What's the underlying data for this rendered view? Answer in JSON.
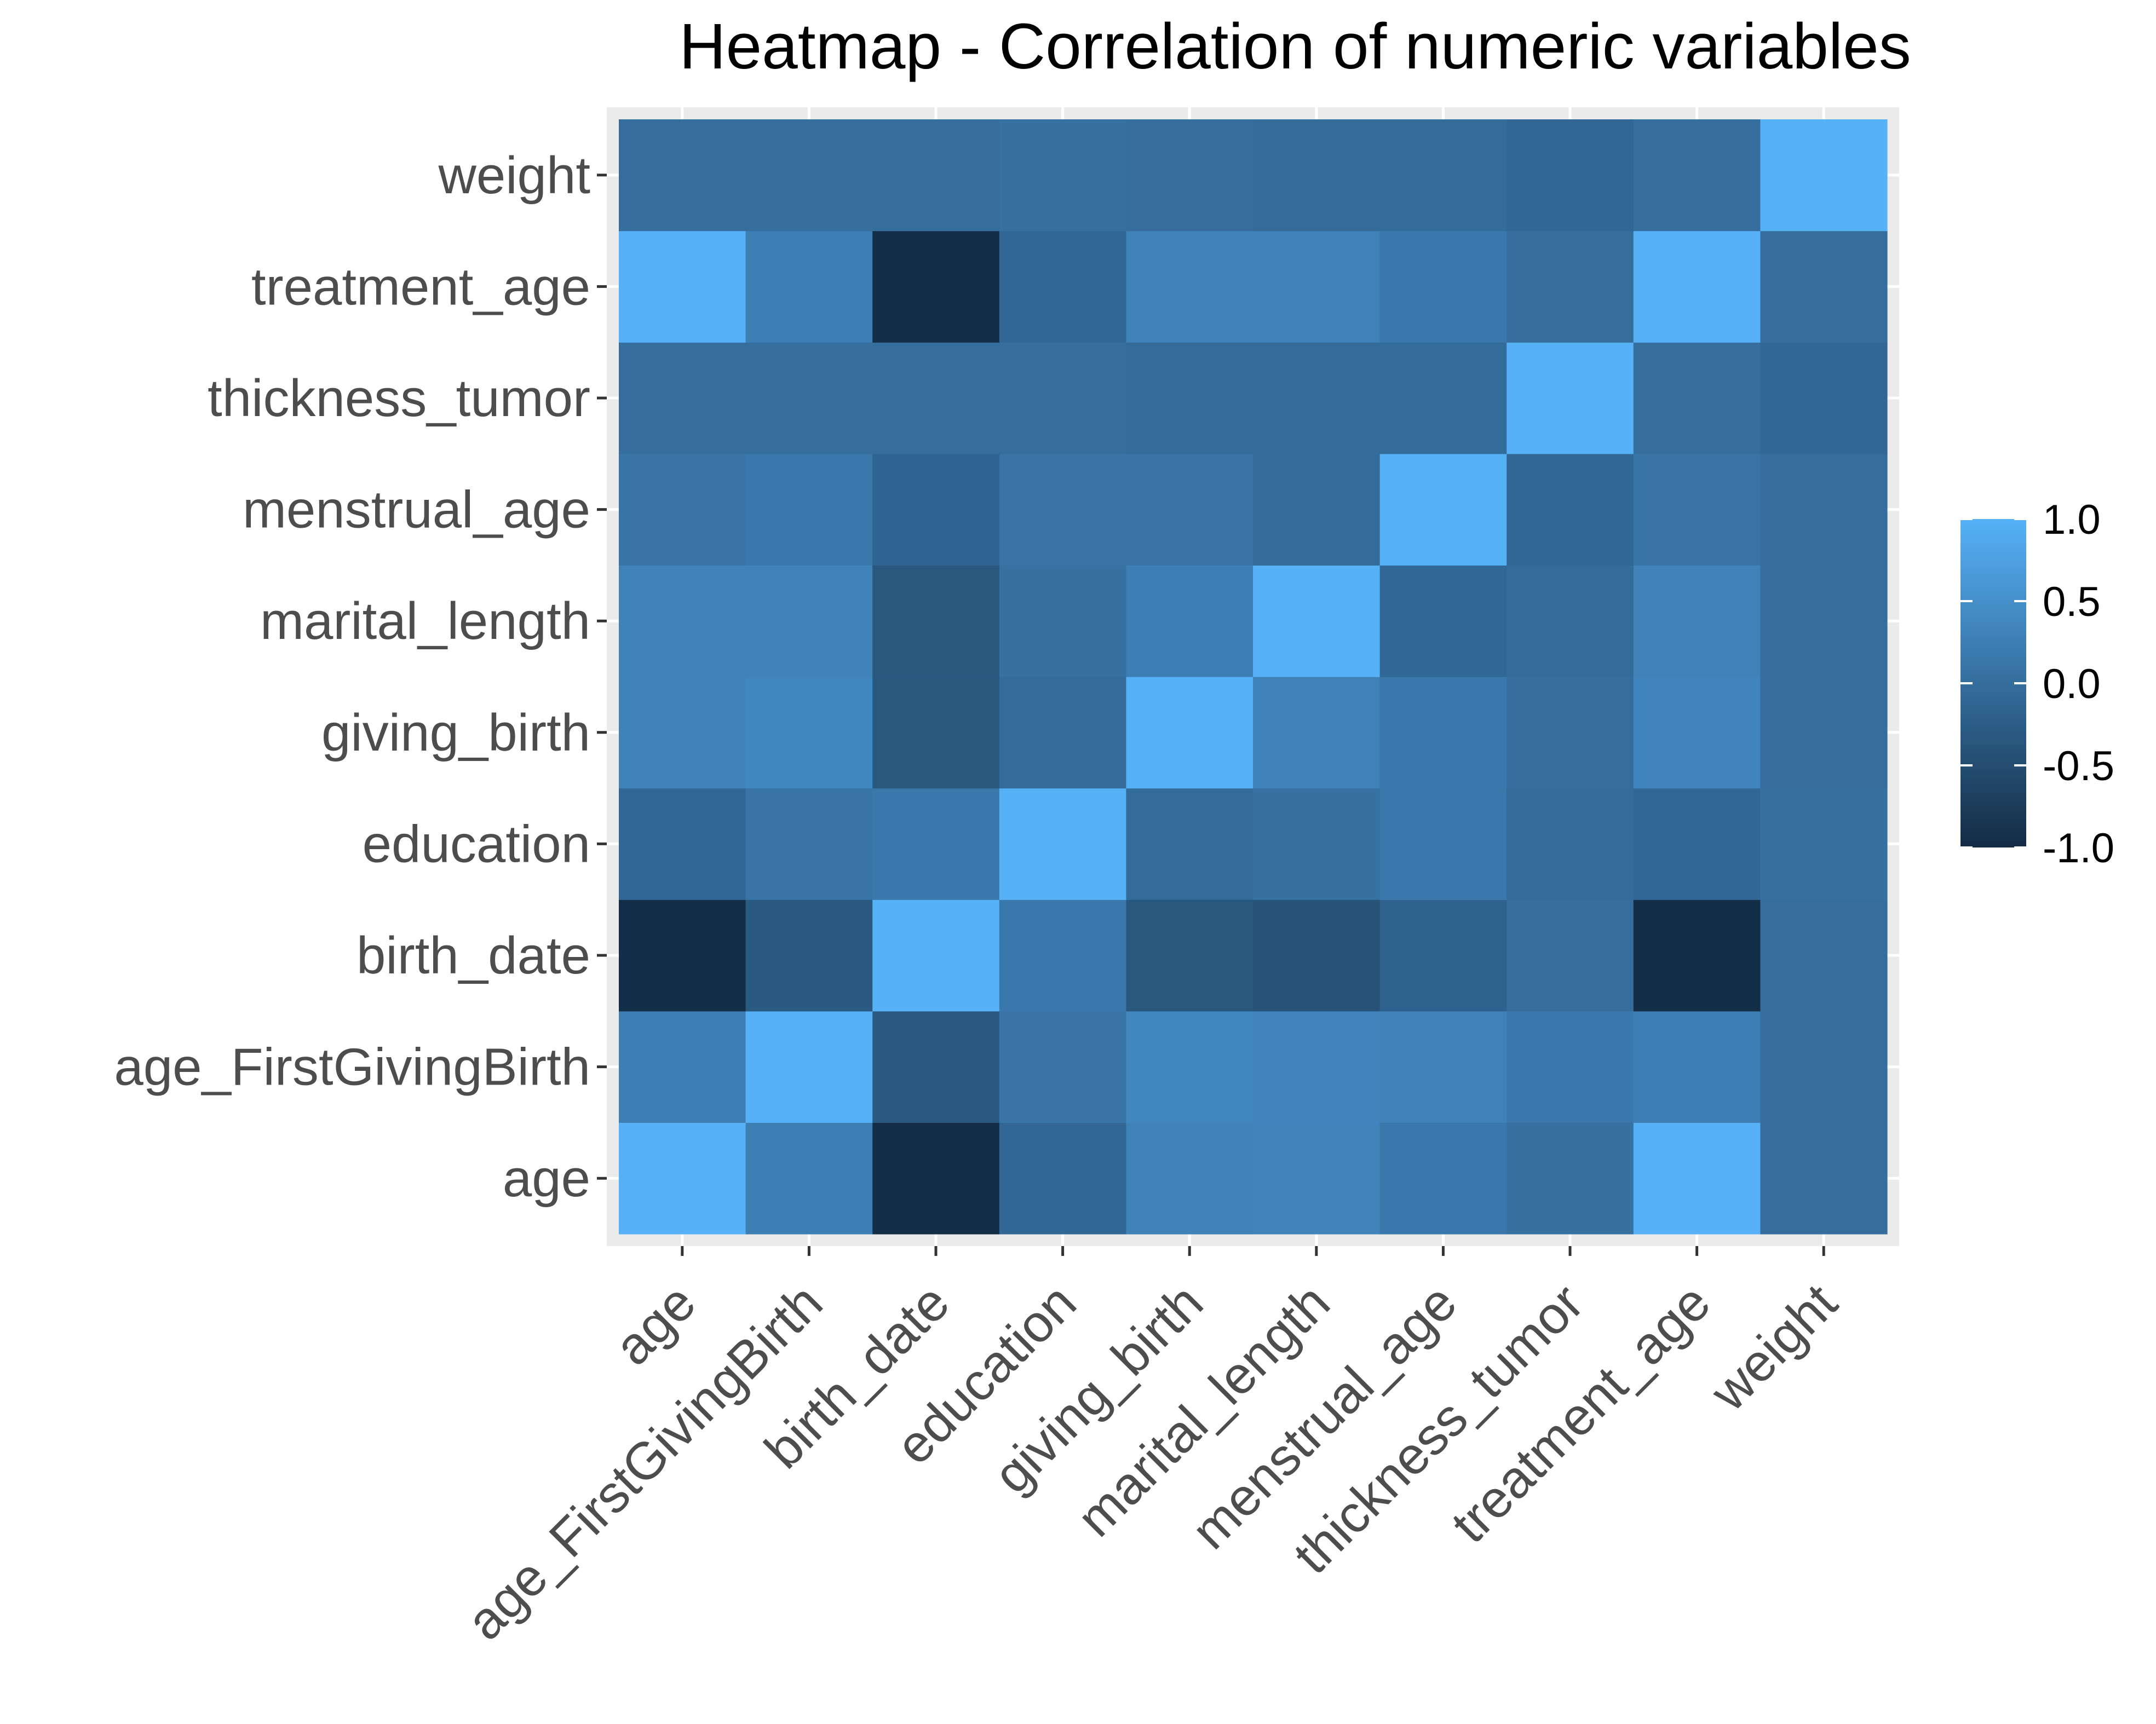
{
  "chart_data": {
    "type": "heatmap",
    "title": "Heatmap - Correlation of numeric variables",
    "xlabel": "",
    "ylabel": "",
    "x_categories": [
      "age",
      "age_FirstGivingBirth",
      "birth_date",
      "education",
      "giving_birth",
      "marital_length",
      "menstrual_age",
      "thickness_tumor",
      "treatment_age",
      "weight"
    ],
    "y_categories": [
      "age",
      "age_FirstGivingBirth",
      "birth_date",
      "education",
      "giving_birth",
      "marital_length",
      "menstrual_age",
      "thickness_tumor",
      "treatment_age",
      "weight"
    ],
    "values": [
      [
        1.0,
        0.25,
        -0.95,
        -0.1,
        0.3,
        0.33,
        0.15,
        0.05,
        1.0,
        0.0
      ],
      [
        0.25,
        1.0,
        -0.3,
        0.1,
        0.38,
        0.35,
        0.3,
        0.15,
        0.25,
        0.0
      ],
      [
        -0.95,
        -0.3,
        1.0,
        0.15,
        -0.35,
        -0.4,
        -0.2,
        0.0,
        -0.95,
        0.0
      ],
      [
        -0.1,
        0.1,
        0.15,
        1.0,
        -0.05,
        0.05,
        0.15,
        -0.05,
        -0.1,
        0.05
      ],
      [
        0.3,
        0.38,
        -0.35,
        -0.05,
        1.0,
        0.3,
        0.15,
        0.0,
        0.35,
        0.0
      ],
      [
        0.3,
        0.3,
        -0.35,
        0.05,
        0.25,
        1.0,
        -0.1,
        -0.05,
        0.3,
        0.0
      ],
      [
        0.1,
        0.15,
        -0.15,
        0.1,
        0.1,
        -0.05,
        1.0,
        -0.1,
        0.1,
        0.0
      ],
      [
        0.0,
        0.0,
        0.0,
        0.0,
        -0.05,
        -0.05,
        -0.05,
        1.0,
        0.0,
        -0.1
      ],
      [
        1.0,
        0.25,
        -0.95,
        -0.1,
        0.3,
        0.3,
        0.15,
        0.0,
        1.0,
        0.0
      ],
      [
        0.0,
        0.0,
        0.0,
        0.05,
        0.0,
        -0.05,
        -0.05,
        -0.1,
        0.0,
        1.0
      ]
    ],
    "color_scale": {
      "low": "#132B43",
      "high": "#56B1F7",
      "limits": [
        -1.0,
        1.0
      ],
      "breaks": [
        1.0,
        0.5,
        0.0,
        -0.5,
        -1.0
      ],
      "break_labels": [
        "1.0",
        "0.5",
        "0.0",
        "-0.5",
        "-1.0"
      ]
    },
    "panel_background": "#EBEBEB",
    "grid": true,
    "legend_position": "right"
  }
}
